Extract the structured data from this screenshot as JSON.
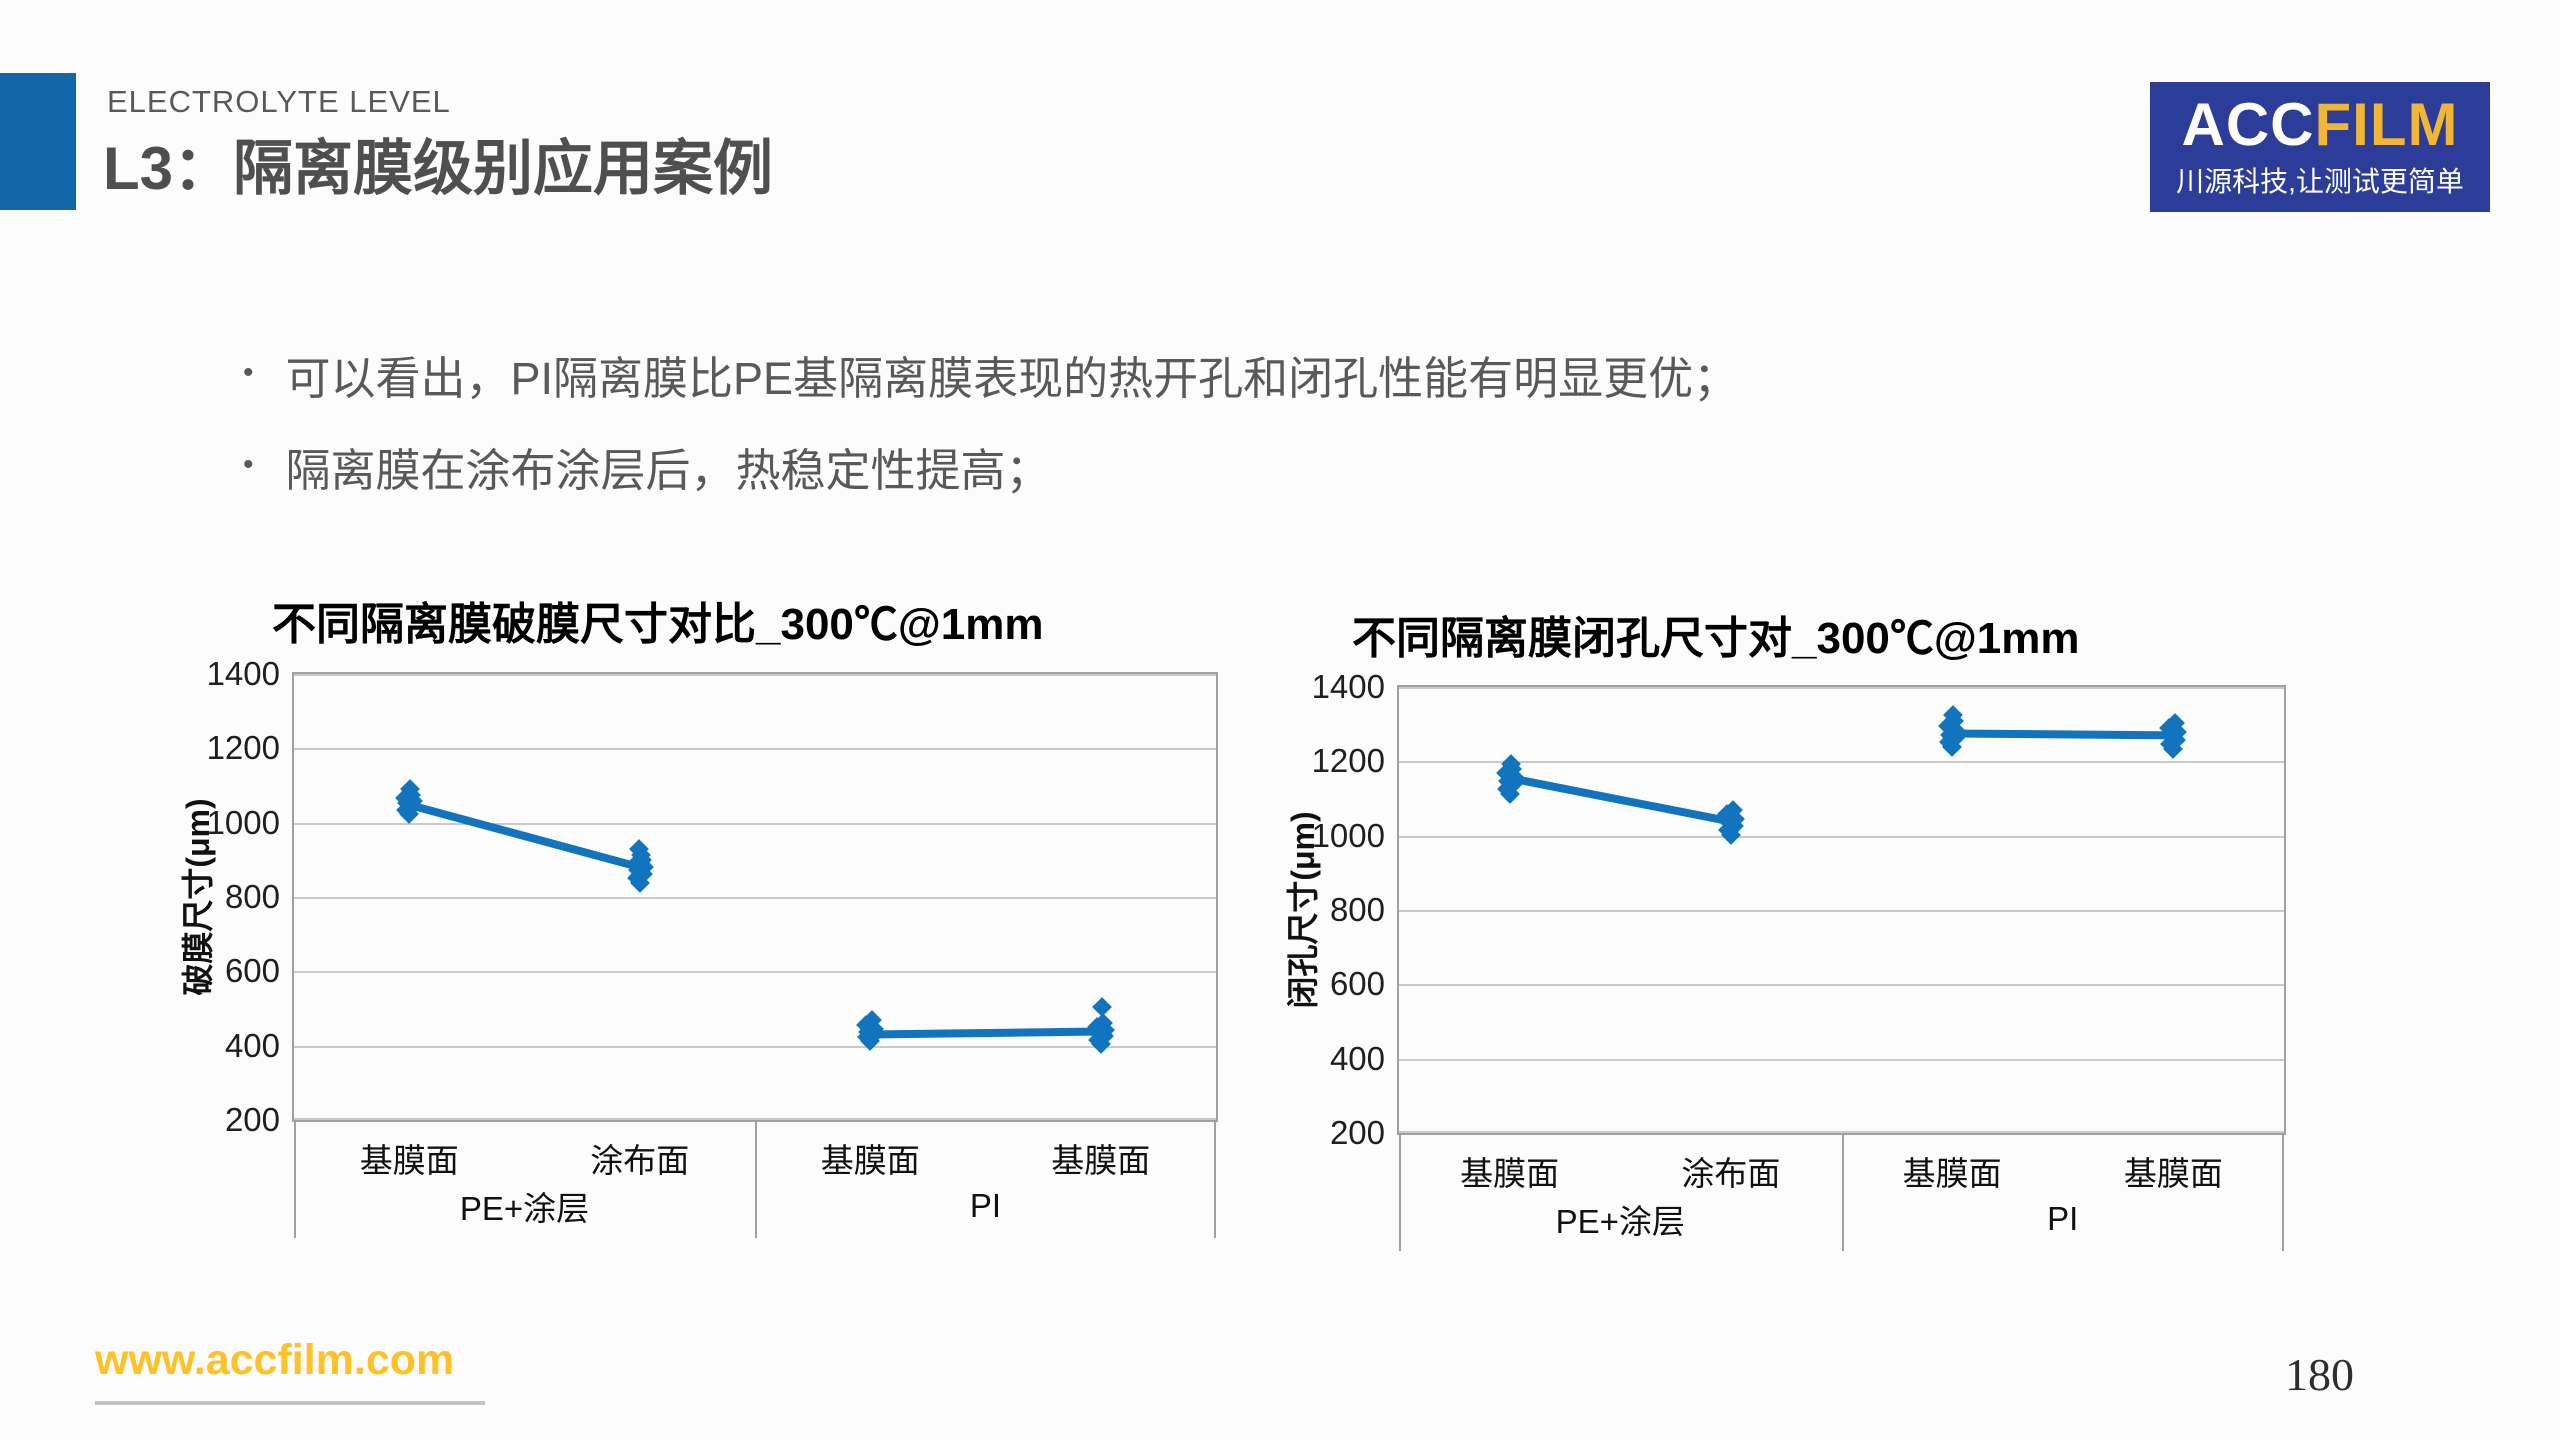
{
  "slide": {
    "eyebrow": "ELECTROLYTE LEVEL",
    "title": "L3：隔离膜级别应用案例",
    "website": "www.accfilm.com",
    "page_number": "180"
  },
  "logo": {
    "brand_acc": "ACC",
    "brand_film": "FILM",
    "tagline": "川源科技,让测试更简单",
    "bg_color": "#2b3c99",
    "film_color": "#f2b636"
  },
  "bullets": [
    "可以看出，PI隔离膜比PE基隔离膜表现的热开孔和闭孔性能有明显更优；",
    "隔离膜在涂布涂层后，热稳定性提高；"
  ],
  "colors": {
    "accent_blue": "#1467a9",
    "series_blue": "#1273be",
    "gridline": "#c9c9c9",
    "axis_frame": "#a0a0a0",
    "body_text": "#595959",
    "website_gold": "#ffc226"
  },
  "chart_data": [
    {
      "type": "scatter",
      "title": "不同隔离膜破膜尺寸对比_300℃@1mm",
      "xlabel": "",
      "ylabel": "破膜尺寸(μm)",
      "ylim": [
        200,
        1400
      ],
      "yticks": [
        1400,
        1200,
        1000,
        800,
        600,
        400,
        200
      ],
      "grid": true,
      "legend_position": "none",
      "groups": [
        {
          "label": "PE+涂层",
          "categories": [
            "基膜面",
            "涂布面"
          ]
        },
        {
          "label": "PI",
          "categories": [
            "基膜面",
            "基膜面"
          ]
        }
      ],
      "series": [
        {
          "name": "破膜尺寸",
          "color": "#1273be",
          "clusters": [
            [
              1022,
              1035,
              1044,
              1052,
              1058,
              1066,
              1075,
              1090
            ],
            [
              838,
              852,
              862,
              872,
              880,
              890,
              900,
              912,
              928
            ],
            [
              412,
              422,
              430,
              438,
              446,
              456,
              470
            ],
            [
              405,
              415,
              425,
              433,
              441,
              450,
              462,
              503
            ]
          ],
          "trend_segments": [
            {
              "from_cat": 0,
              "from_val": 1048,
              "to_cat": 1,
              "to_val": 880
            },
            {
              "from_cat": 2,
              "from_val": 430,
              "to_cat": 3,
              "to_val": 438
            }
          ]
        }
      ]
    },
    {
      "type": "scatter",
      "title": "不同隔离膜闭孔尺寸对_300℃@1mm",
      "xlabel": "",
      "ylabel": "闭孔尺寸(μm)",
      "ylim": [
        200,
        1400
      ],
      "yticks": [
        1400,
        1200,
        1000,
        800,
        600,
        400,
        200
      ],
      "grid": true,
      "legend_position": "none",
      "groups": [
        {
          "label": "PE+涂层",
          "categories": [
            "基膜面",
            "涂布面"
          ]
        },
        {
          "label": "PI",
          "categories": [
            "基膜面",
            "基膜面"
          ]
        }
      ],
      "series": [
        {
          "name": "闭孔尺寸",
          "color": "#1273be",
          "clusters": [
            [
              1112,
              1126,
              1138,
              1148,
              1158,
              1168,
              1180,
              1194
            ],
            [
              1002,
              1014,
              1026,
              1036,
              1046,
              1058,
              1068
            ],
            [
              1238,
              1252,
              1262,
              1272,
              1282,
              1294,
              1308,
              1325
            ],
            [
              1232,
              1246,
              1258,
              1268,
              1278,
              1290,
              1302
            ]
          ],
          "trend_segments": [
            {
              "from_cat": 0,
              "from_val": 1155,
              "to_cat": 1,
              "to_val": 1038
            },
            {
              "from_cat": 2,
              "from_val": 1275,
              "to_cat": 3,
              "to_val": 1270
            }
          ]
        }
      ]
    }
  ]
}
